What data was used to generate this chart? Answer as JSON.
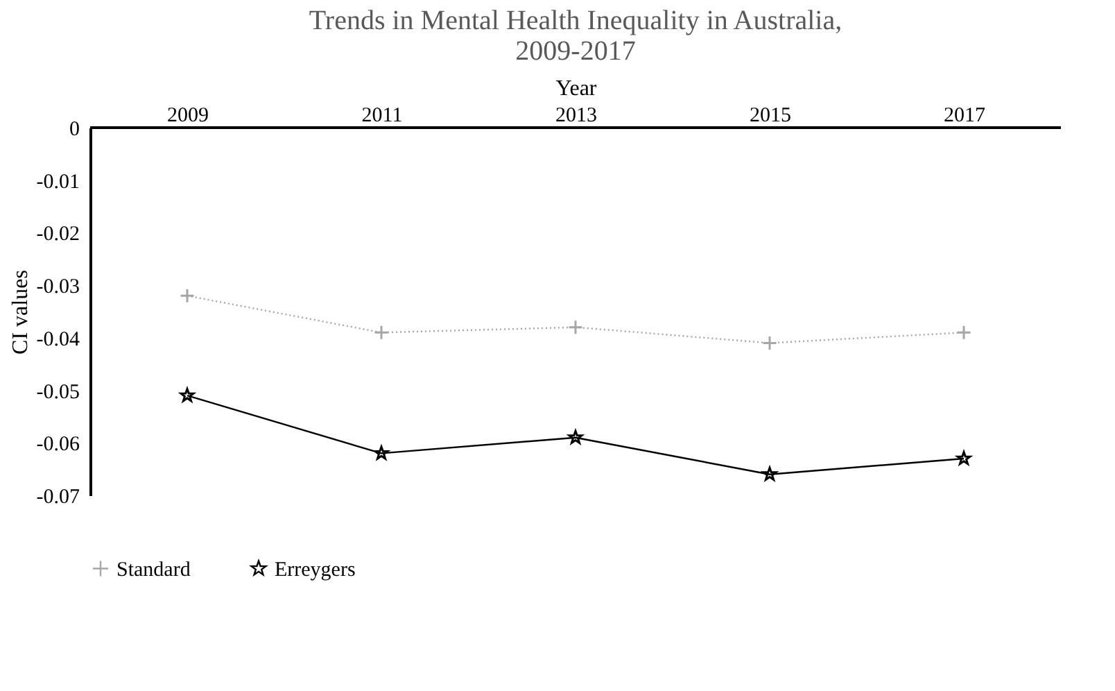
{
  "chart_data": {
    "type": "line",
    "title": [
      "Trends in Mental Health Inequality in Australia,",
      "2009-2017"
    ],
    "xlabel": "Year",
    "ylabel": "CI values",
    "categories": [
      "2009",
      "2011",
      "2013",
      "2015",
      "2017"
    ],
    "series": [
      {
        "name": "Standard",
        "color": "#a6a6a6",
        "marker": "cross",
        "line_style": "dotted",
        "values": [
          -0.032,
          -0.039,
          -0.038,
          -0.041,
          -0.039
        ]
      },
      {
        "name": "Erreygers",
        "color": "#000000",
        "marker": "star",
        "line_style": "solid",
        "values": [
          -0.051,
          -0.062,
          -0.059,
          -0.066,
          -0.063
        ]
      }
    ],
    "ylim": [
      -0.07,
      0
    ],
    "yticks": [
      0,
      -0.01,
      -0.02,
      -0.03,
      -0.04,
      -0.05,
      -0.06,
      -0.07
    ],
    "grid": false,
    "legend": "bottom"
  }
}
